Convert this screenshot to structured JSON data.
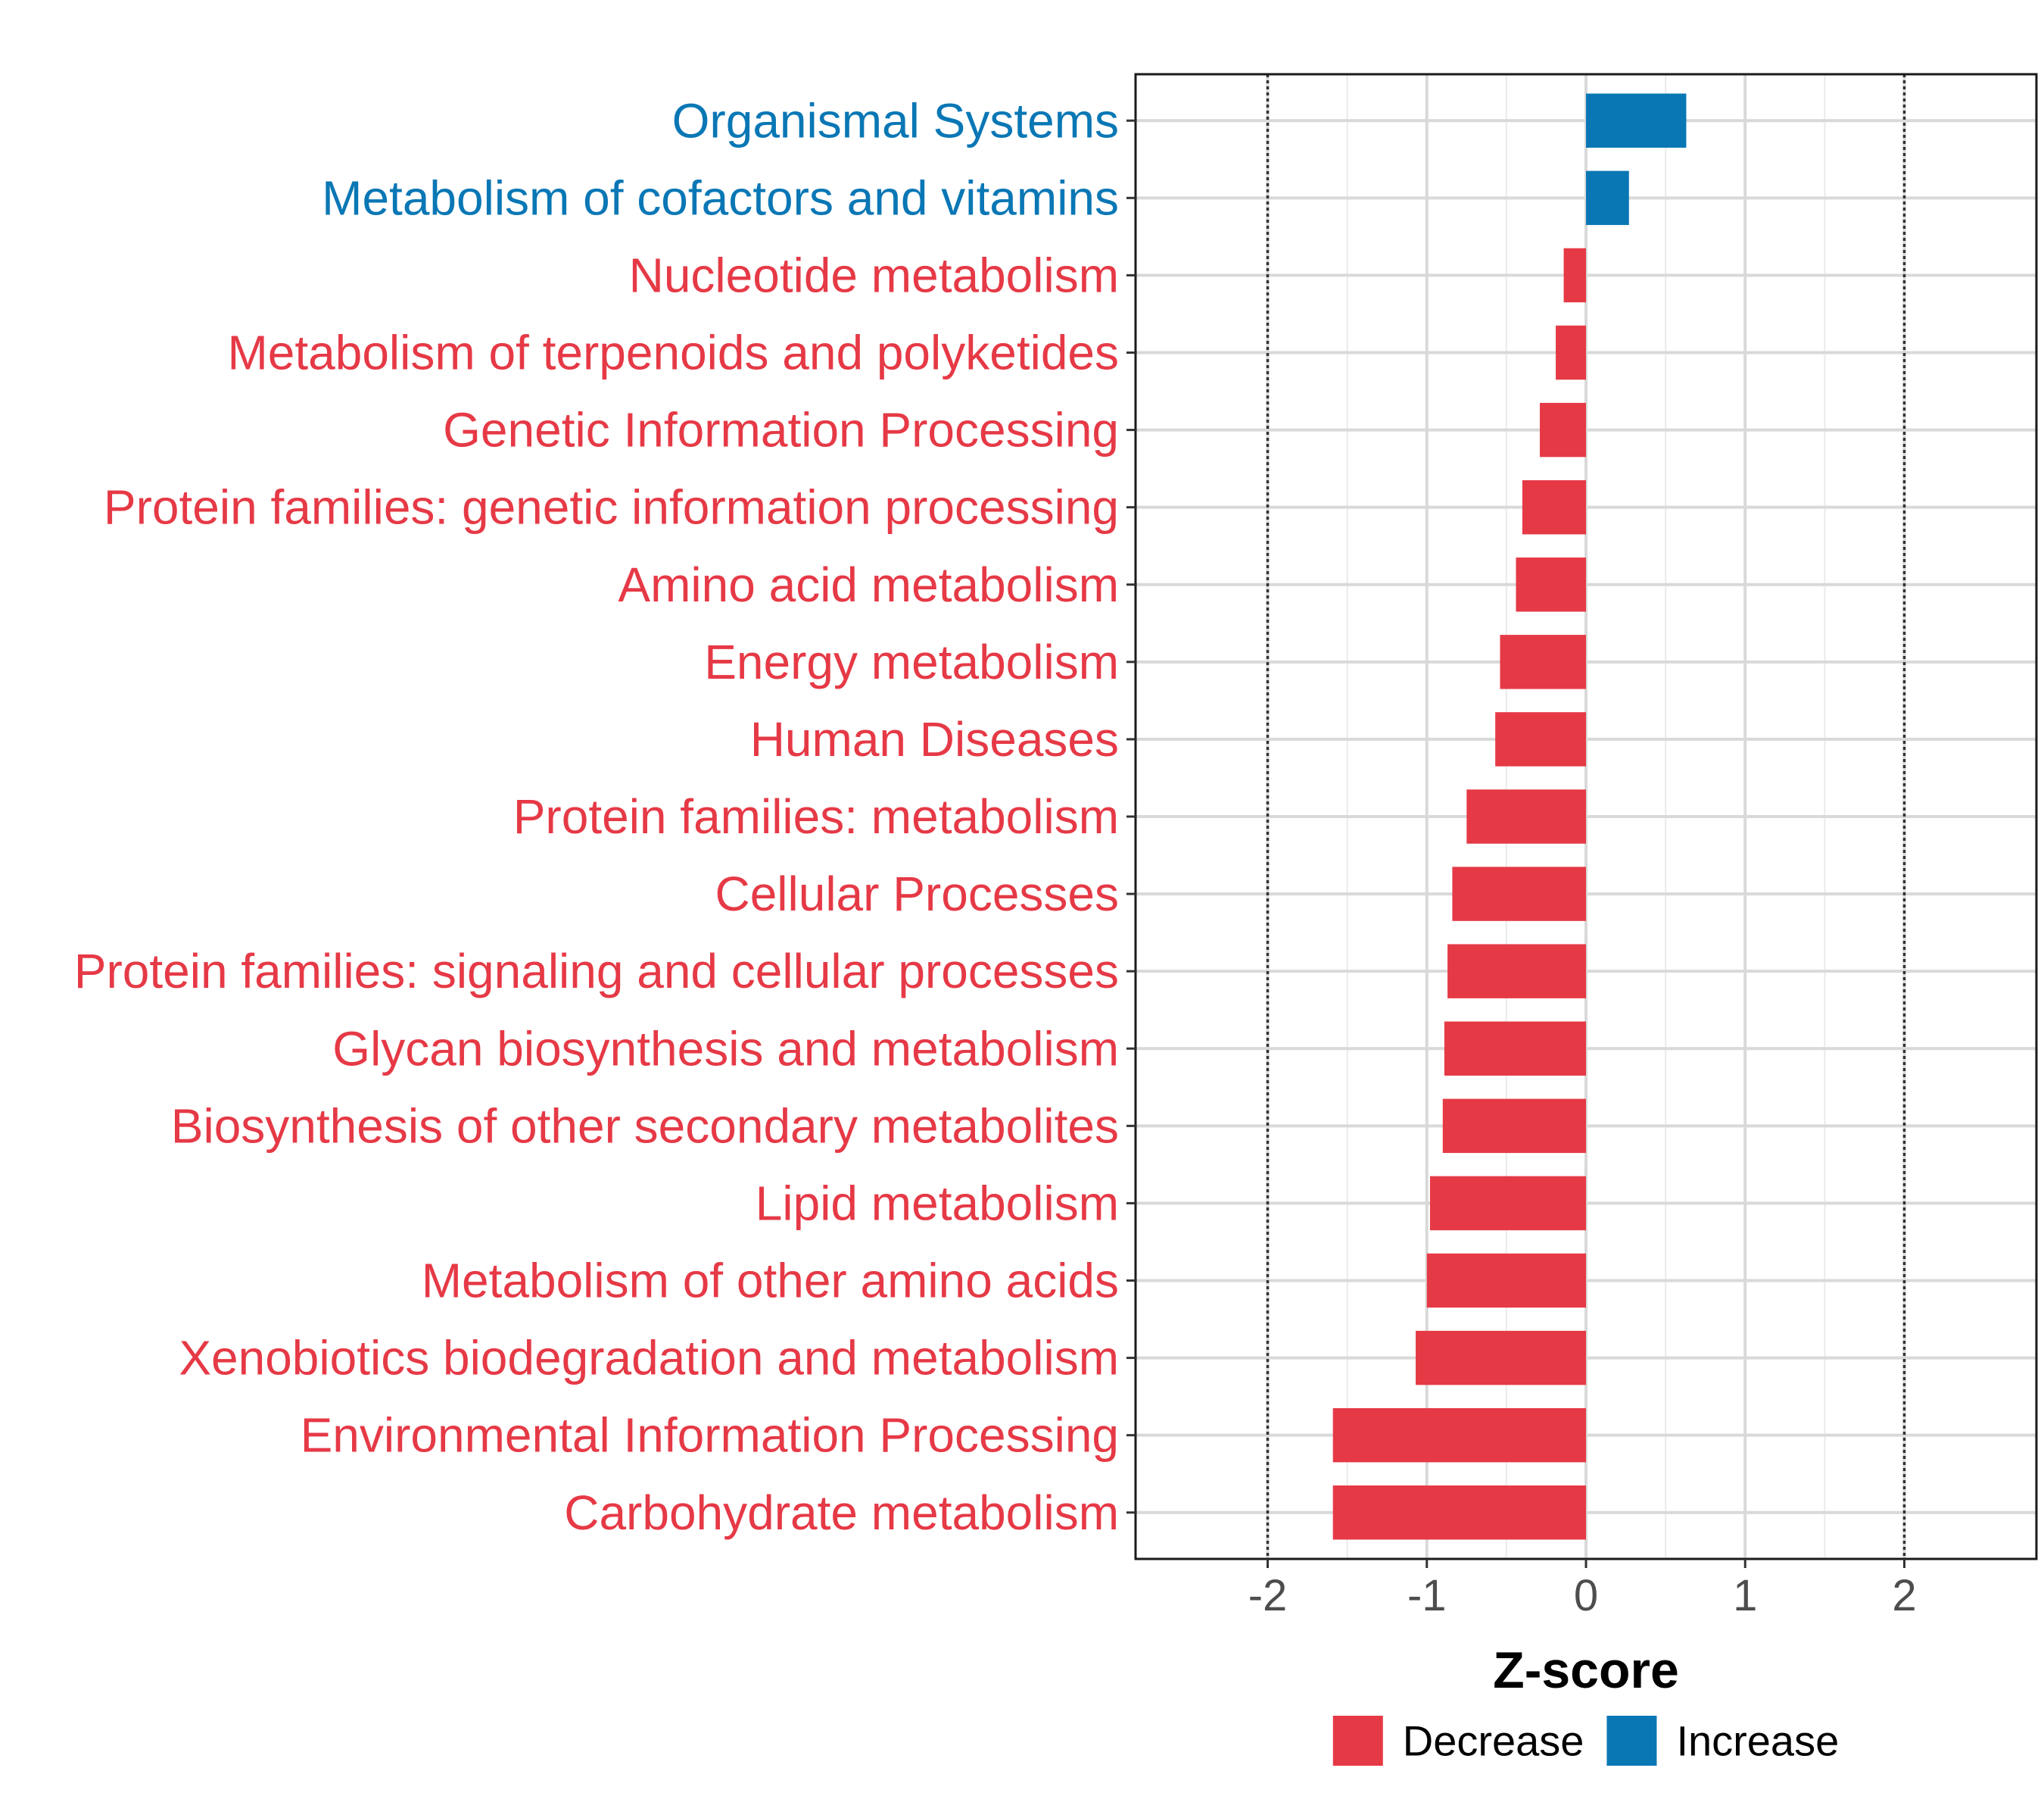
{
  "chart_data": {
    "type": "bar",
    "orientation": "horizontal",
    "title": "",
    "xlabel": "Z-score",
    "ylabel": "",
    "xlim": [
      -2.83,
      2.83
    ],
    "xticks": [
      -2,
      -1,
      0,
      1,
      2
    ],
    "xtick_labels": [
      "-2",
      "-1",
      "0",
      "1",
      "2"
    ],
    "reference_lines": [
      -2,
      2
    ],
    "grid": true,
    "colors": {
      "Decrease": "#E63946",
      "Increase": "#0A77B5"
    },
    "categories": [
      "Organismal Systems",
      "Metabolism of cofactors and vitamins",
      "Nucleotide metabolism",
      "Metabolism of terpenoids and polyketides",
      "Genetic Information Processing",
      "Protein families: genetic information processing",
      "Amino acid metabolism",
      "Energy metabolism",
      "Human Diseases",
      "Protein families: metabolism",
      "Cellular Processes",
      "Protein families: signaling and cellular processes",
      "Glycan biosynthesis and metabolism",
      "Biosynthesis of other secondary metabolites",
      "Lipid metabolism",
      "Metabolism of other amino acids",
      "Xenobiotics biodegradation and metabolism",
      "Environmental Information Processing",
      "Carbohydrate metabolism"
    ],
    "values": [
      0.63,
      0.27,
      -0.14,
      -0.19,
      -0.29,
      -0.4,
      -0.44,
      -0.54,
      -0.57,
      -0.75,
      -0.84,
      -0.87,
      -0.89,
      -0.9,
      -0.98,
      -1.0,
      -1.07,
      -1.59,
      -1.59
    ],
    "groups": [
      "Increase",
      "Increase",
      "Decrease",
      "Decrease",
      "Decrease",
      "Decrease",
      "Decrease",
      "Decrease",
      "Decrease",
      "Decrease",
      "Decrease",
      "Decrease",
      "Decrease",
      "Decrease",
      "Decrease",
      "Decrease",
      "Decrease",
      "Decrease",
      "Decrease"
    ],
    "legend": {
      "position": "bottom",
      "entries": [
        {
          "label": "Decrease",
          "color": "#E63946"
        },
        {
          "label": "Increase",
          "color": "#0A77B5"
        }
      ]
    }
  }
}
